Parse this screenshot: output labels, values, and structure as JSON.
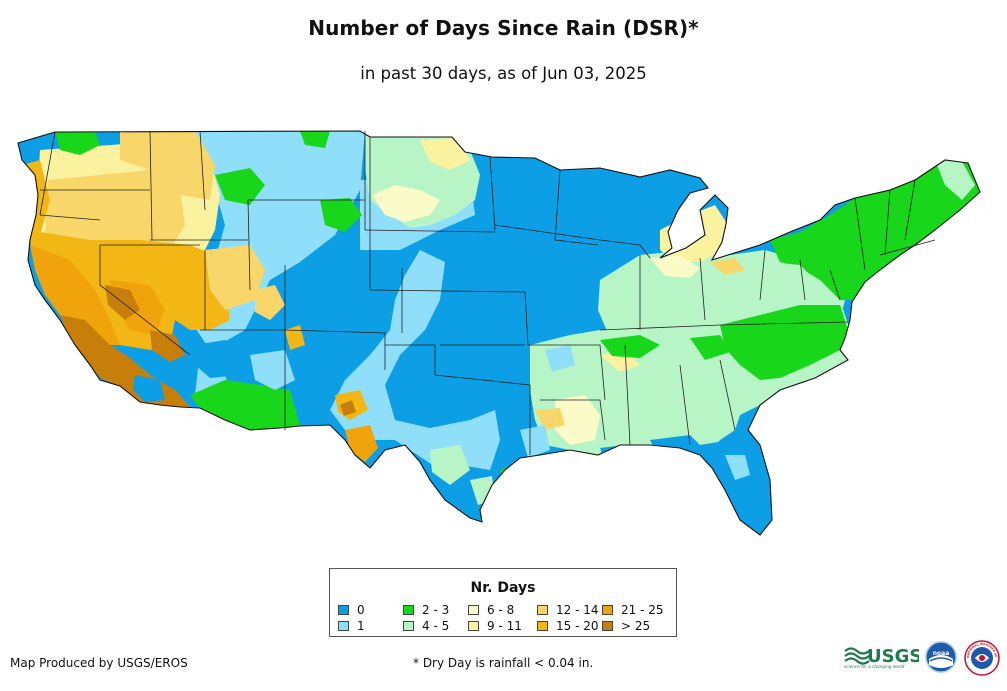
{
  "header": {
    "title": "Number of Days Since Rain (DSR)*",
    "subtitle": "in past 30 days, as of Jun 03, 2025"
  },
  "legend": {
    "title": "Nr. Days",
    "items": [
      {
        "label": "0",
        "color": "#0c9fe6"
      },
      {
        "label": "1",
        "color": "#8fdffb"
      },
      {
        "label": "2 - 3",
        "color": "#18d61a"
      },
      {
        "label": "4 - 5",
        "color": "#b7f5c6"
      },
      {
        "label": "6 - 8",
        "color": "#fbfbc9"
      },
      {
        "label": "9 - 11",
        "color": "#fbf2a0"
      },
      {
        "label": "12 - 14",
        "color": "#f9d66a"
      },
      {
        "label": "15 - 20",
        "color": "#f2b615"
      },
      {
        "label": "21 - 25",
        "color": "#f0a30a"
      },
      {
        "label": "> 25",
        "color": "#c87f0a"
      }
    ]
  },
  "footer": {
    "credit": "Map Produced by USGS/EROS",
    "footnote": "* Dry Day is rainfall < 0.04 in."
  },
  "logos": {
    "usgs": "USGS",
    "usgs_tagline": "science for a changing world",
    "noaa": "noaa",
    "nws": "NATIONAL WEATHER SERVICE"
  }
}
